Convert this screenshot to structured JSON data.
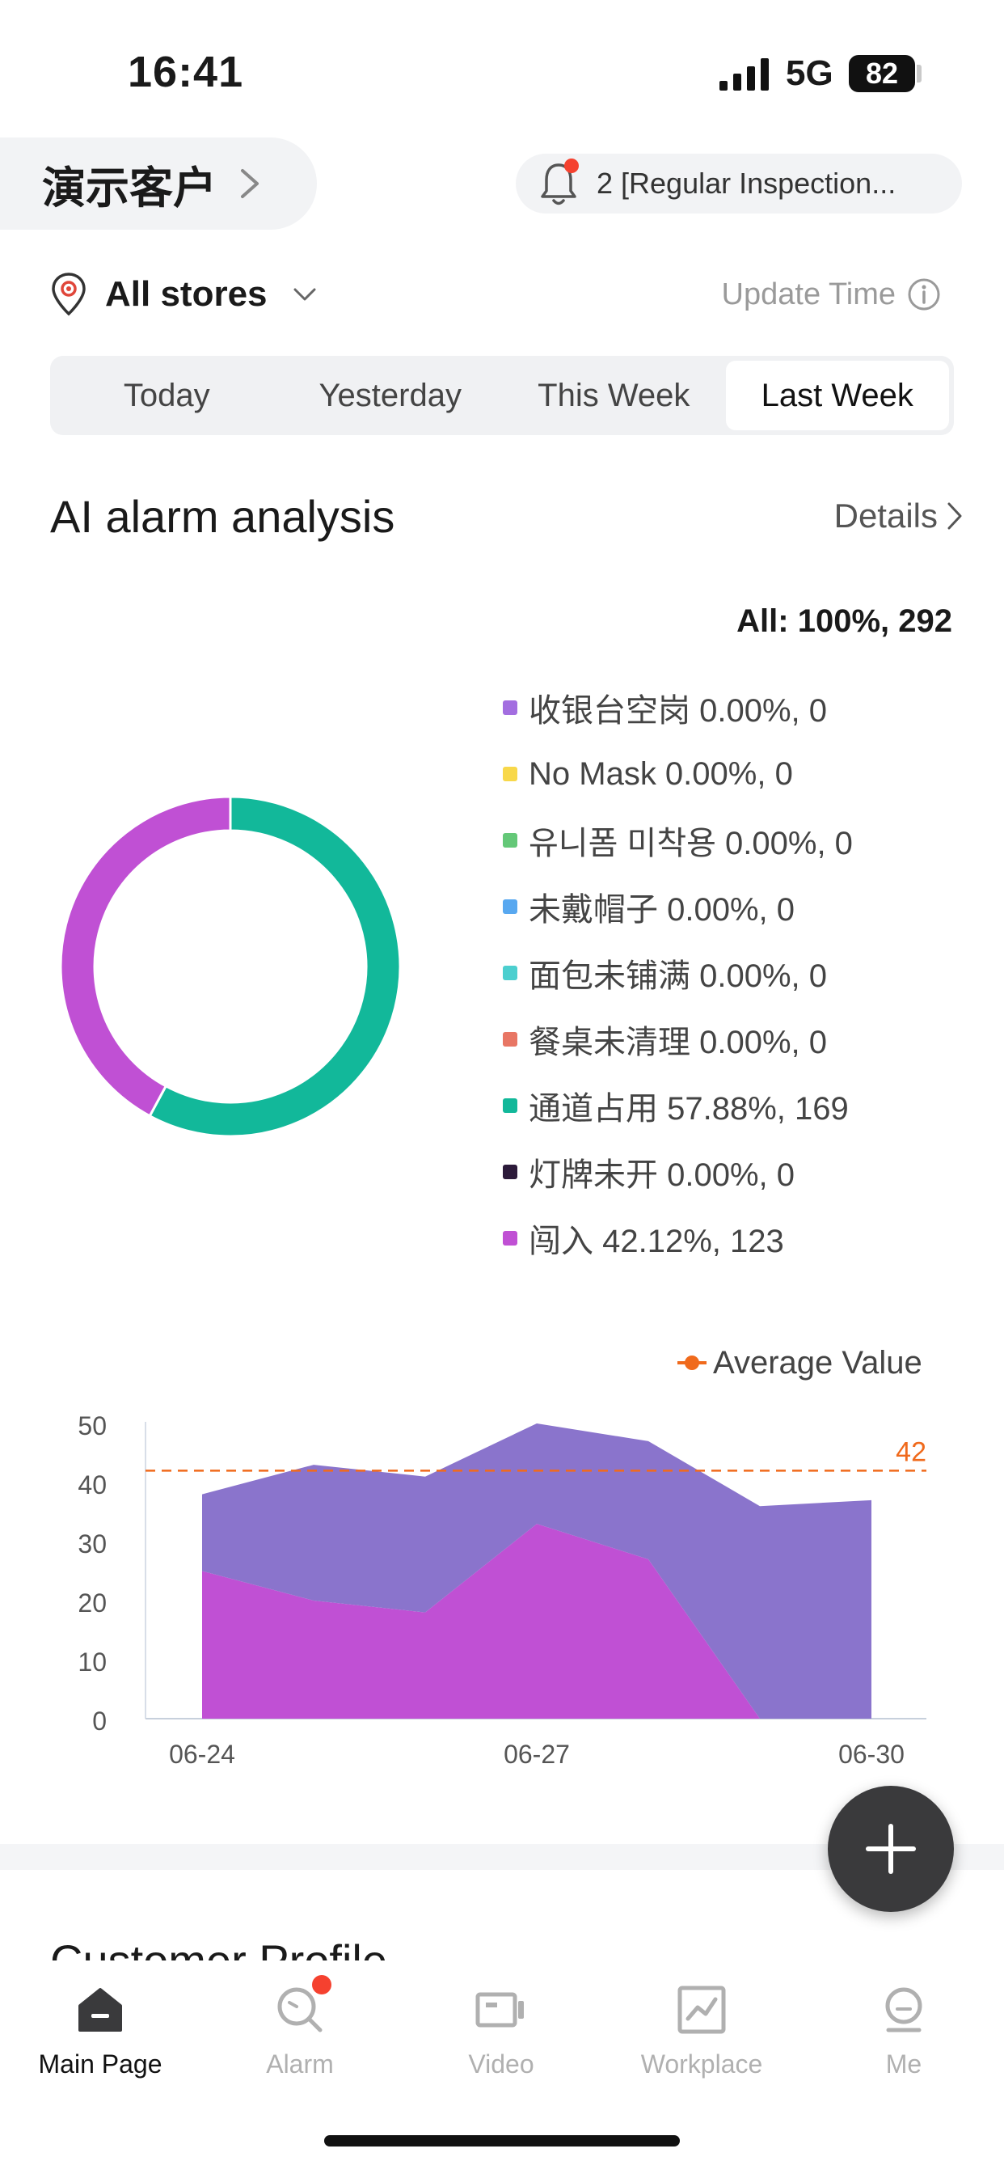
{
  "status_bar": {
    "time": "16:41",
    "network": "5G",
    "battery": "82"
  },
  "header": {
    "account_name": "演示客户",
    "notice_count": "2",
    "notice_text": "2 [Regular Inspection..."
  },
  "filters": {
    "store_label": "All stores",
    "update_label": "Update Time",
    "tabs": [
      {
        "label": "Today",
        "active": false
      },
      {
        "label": "Yesterday",
        "active": false
      },
      {
        "label": "This Week",
        "active": false
      },
      {
        "label": "Last Week",
        "active": true
      }
    ]
  },
  "alarm_section": {
    "title": "AI alarm analysis",
    "details_label": "Details",
    "total_label": "All: 100%, 292",
    "legend": [
      {
        "label": "收银台空岗 0.00%, 0",
        "color": "#a36ee0"
      },
      {
        "label": "No Mask 0.00%, 0",
        "color": "#f8d84a"
      },
      {
        "label": "유니폼 미착용 0.00%, 0",
        "color": "#64c878"
      },
      {
        "label": "未戴帽子 0.00%, 0",
        "color": "#58a8f0"
      },
      {
        "label": "面包未铺满 0.00%, 0",
        "color": "#4ccfcf"
      },
      {
        "label": "餐桌未清理 0.00%, 0",
        "color": "#e87664"
      },
      {
        "label": "通道占用 57.88%, 169",
        "color": "#12b89a"
      },
      {
        "label": "灯牌未开 0.00%, 0",
        "color": "#2c1a3a"
      },
      {
        "label": "闯入 42.12%, 123",
        "color": "#c050d4"
      }
    ]
  },
  "chart_data": [
    {
      "type": "pie",
      "title": "",
      "categories": [
        "收银台空岗",
        "No Mask",
        "유니폼 미착용",
        "未戴帽子",
        "面包未铺满",
        "餐桌未清理",
        "通道占用",
        "灯牌未开",
        "闯入"
      ],
      "values": [
        0,
        0,
        0,
        0,
        0,
        0,
        169,
        0,
        123
      ],
      "percent": [
        0,
        0,
        0,
        0,
        0,
        0,
        57.88,
        0,
        42.12
      ],
      "colors": [
        "#a36ee0",
        "#f8d84a",
        "#64c878",
        "#58a8f0",
        "#4ccfcf",
        "#e87664",
        "#12b89a",
        "#2c1a3a",
        "#c050d4"
      ],
      "style": "donut",
      "legend": "right"
    },
    {
      "type": "area",
      "stacked": true,
      "x": [
        "06-24",
        "06-25",
        "06-26",
        "06-27",
        "06-28",
        "06-29",
        "06-30"
      ],
      "x_tick_labels": [
        "06-24",
        "06-27",
        "06-30"
      ],
      "series": [
        {
          "values": [
            25,
            20,
            18,
            33,
            27,
            0,
            0
          ],
          "color": "#c050d4"
        },
        {
          "values": [
            13,
            23,
            23,
            17,
            20,
            36,
            37
          ],
          "color": "#8a74cc"
        }
      ],
      "ylim": [
        0,
        50
      ],
      "yticks": [
        0,
        10,
        20,
        30,
        40,
        50
      ],
      "average": {
        "label": "Average Value",
        "value": 42,
        "value_label": "42",
        "color": "#f06a1c"
      },
      "legend": "top-right",
      "grid": false
    }
  ],
  "profile_section": {
    "title": "Customer Profile"
  },
  "tabbar": {
    "items": [
      {
        "label": "Main Page",
        "active": true
      },
      {
        "label": "Alarm",
        "active": false
      },
      {
        "label": "Video",
        "active": false
      },
      {
        "label": "Workplace",
        "active": false
      },
      {
        "label": "Me",
        "active": false
      }
    ]
  }
}
